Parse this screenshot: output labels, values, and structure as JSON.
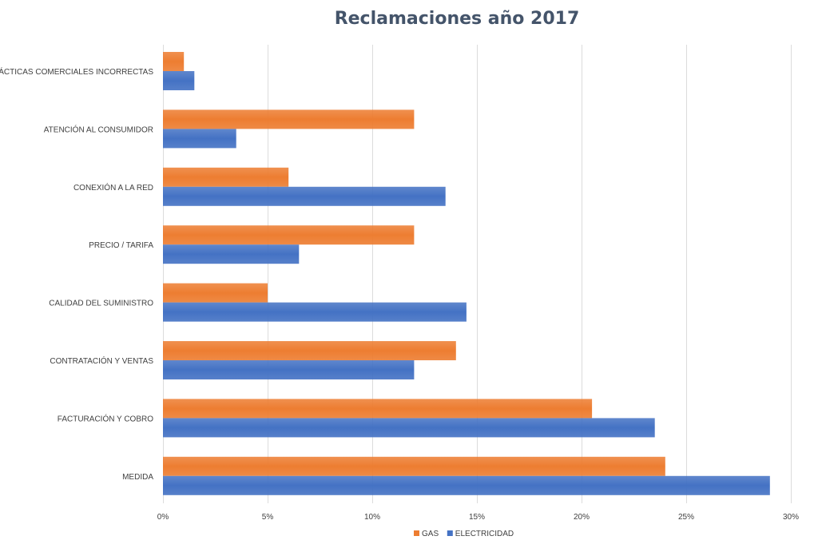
{
  "chart_data": {
    "type": "bar",
    "orientation": "horizontal",
    "title": "Reclamaciones año 2017",
    "categories": [
      "PRÁCTICAS COMERCIALES INCORRECTAS",
      "ATENCIÓN AL CONSUMIDOR",
      "CONEXIÓN A LA RED",
      "PRECIO / TARIFA",
      "CALIDAD DEL SUMINISTRO",
      "CONTRATACIÓN Y VENTAS",
      "FACTURACIÓN Y COBRO",
      "MEDIDA"
    ],
    "series": [
      {
        "name": "GAS",
        "color": "#ed7d31",
        "values": [
          1.0,
          12.0,
          6.0,
          12.0,
          5.0,
          14.0,
          20.5,
          24.0
        ]
      },
      {
        "name": "ELECTRICIDAD",
        "color": "#4472c4",
        "values": [
          1.5,
          3.5,
          13.5,
          6.5,
          14.5,
          12.0,
          23.5,
          29.0
        ]
      }
    ],
    "xlim": [
      0,
      30
    ],
    "xticks": [
      0,
      5,
      10,
      15,
      20,
      25,
      30
    ],
    "xtick_labels": [
      "0%",
      "5%",
      "10%",
      "15%",
      "20%",
      "25%",
      "30%"
    ],
    "xlabel": "",
    "ylabel": "",
    "grid": "vertical",
    "legend_position": "bottom"
  }
}
